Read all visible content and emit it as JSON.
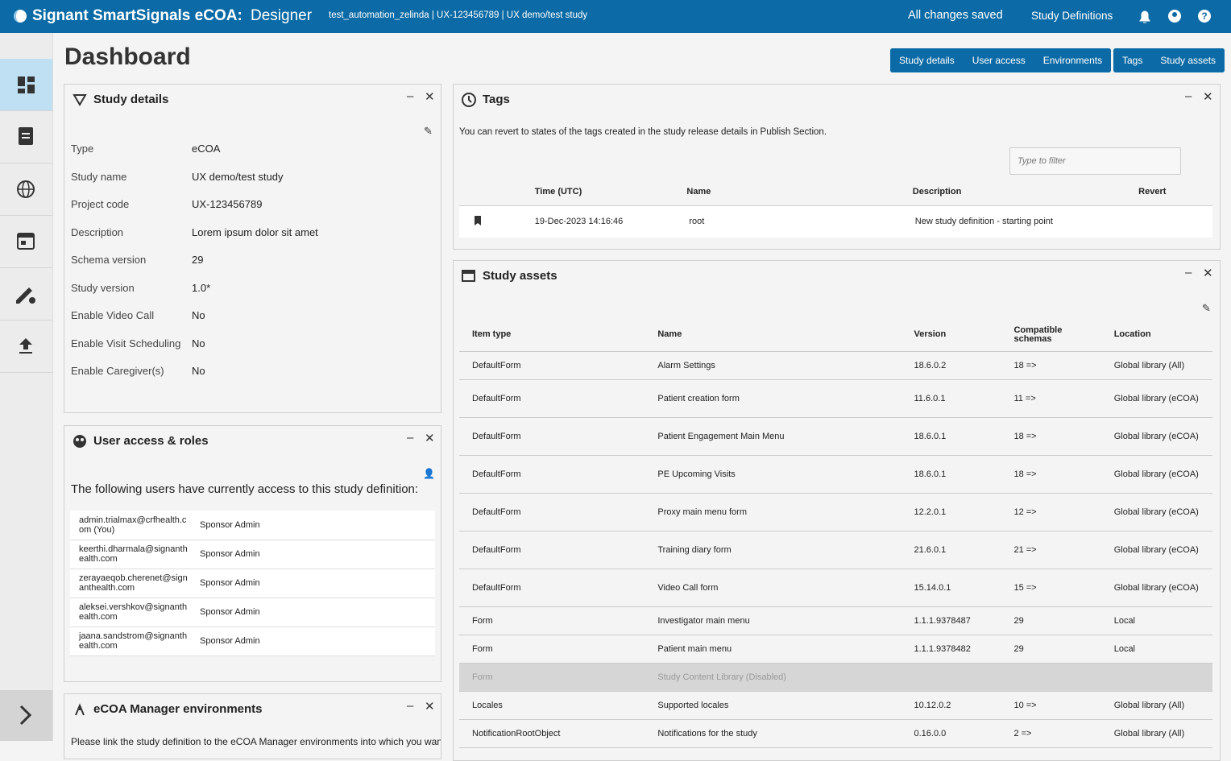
{
  "header": {
    "brand": "Signant SmartSignals eCOA:",
    "product": "Designer",
    "breadcrumb": "test_automation_zelinda | UX-123456789 | UX demo/test study",
    "status": "All changes saved",
    "nav": "Study Definitions"
  },
  "page": {
    "title": "Dashboard",
    "buttons_a": [
      "Study details",
      "User access",
      "Environments"
    ],
    "buttons_b": [
      "Tags",
      "Study assets"
    ]
  },
  "study_details": {
    "title": "Study details",
    "fields": [
      [
        "Type",
        "eCOA"
      ],
      [
        "Study name",
        "UX demo/test study"
      ],
      [
        "Project code",
        "UX-123456789"
      ],
      [
        "Description",
        "Lorem ipsum dolor sit amet"
      ],
      [
        "Schema version",
        "29"
      ],
      [
        "Study version",
        "1.0*"
      ],
      [
        "Enable Video Call",
        "No"
      ],
      [
        "Enable Visit Scheduling",
        "No"
      ],
      [
        "Enable Caregiver(s)",
        "No"
      ]
    ]
  },
  "user_access": {
    "title": "User access & roles",
    "intro": "The following users have currently access to this study definition:",
    "users": [
      [
        "admin.trialmax@crfhealth.com (You)",
        "Sponsor Admin"
      ],
      [
        "keerthi.dharmala@signanthealth.com",
        "Sponsor Admin"
      ],
      [
        "zerayaeqob.cherenet@signanthealth.com",
        "Sponsor Admin"
      ],
      [
        "aleksei.vershkov@signanthealth.com",
        "Sponsor Admin"
      ],
      [
        "jaana.sandstrom@signanthealth.com",
        "Sponsor Admin"
      ]
    ]
  },
  "environments": {
    "title": "eCOA Manager environments",
    "text": "Please link the study definition to the eCOA Manager environments into which you want"
  },
  "tags": {
    "title": "Tags",
    "note": "You can revert to states of the tags created in the study release details in Publish Section.",
    "filter_placeholder": "Type to filter",
    "columns": [
      "Time (UTC)",
      "Name",
      "Description",
      "Revert"
    ],
    "rows": [
      [
        "19-Dec-2023 14:16:46",
        "root",
        "New study definition - starting point"
      ]
    ]
  },
  "study_assets": {
    "title": "Study assets",
    "columns": [
      "Item type",
      "Name",
      "Version",
      "Compatible schemas",
      "Location"
    ],
    "rows": [
      {
        "cells": [
          "DefaultForm",
          "Alarm Settings",
          "18.6.0.2",
          "18 =>",
          "Global library (All)"
        ]
      },
      {
        "cells": [
          "DefaultForm",
          "Patient creation form",
          "11.6.0.1",
          "11 =>",
          "Global library (eCOA)"
        ]
      },
      {
        "cells": [
          "DefaultForm",
          "Patient Engagement Main Menu",
          "18.6.0.1",
          "18 =>",
          "Global library (eCOA)"
        ]
      },
      {
        "cells": [
          "DefaultForm",
          "PE Upcoming Visits",
          "18.6.0.1",
          "18 =>",
          "Global library (eCOA)"
        ]
      },
      {
        "cells": [
          "DefaultForm",
          "Proxy main menu form",
          "12.2.0.1",
          "12 =>",
          "Global library (eCOA)"
        ]
      },
      {
        "cells": [
          "DefaultForm",
          "Training diary form",
          "21.6.0.1",
          "21 =>",
          "Global library (eCOA)"
        ]
      },
      {
        "cells": [
          "DefaultForm",
          "Video Call form",
          "15.14.0.1",
          "15 =>",
          "Global library (eCOA)"
        ]
      },
      {
        "cells": [
          "Form",
          "Investigator main menu",
          "1.1.1.9378487",
          "29",
          "Local"
        ]
      },
      {
        "cells": [
          "Form",
          "Patient main menu",
          "1.1.1.9378482",
          "29",
          "Local"
        ]
      },
      {
        "cells": [
          "Form",
          "Study Content Library (Disabled)"
        ],
        "disabled": true
      },
      {
        "cells": [
          "Locales",
          "Supported locales",
          "10.12.0.2",
          "10 =>",
          "Global library (All)"
        ]
      },
      {
        "cells": [
          "NotificationRootObject",
          "Notifications for the study",
          "0.16.0.0",
          "2 =>",
          "Global library (All)"
        ]
      }
    ]
  }
}
